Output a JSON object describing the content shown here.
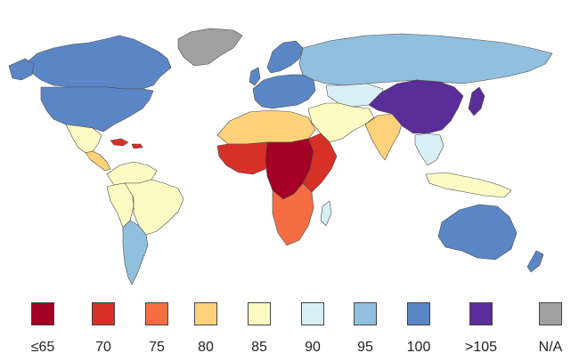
{
  "legend": {
    "items": [
      {
        "label": "≤65",
        "color": "#a50026"
      },
      {
        "label": "70",
        "color": "#d73027"
      },
      {
        "label": "75",
        "color": "#f46d43"
      },
      {
        "label": "80",
        "color": "#fdd27a"
      },
      {
        "label": "85",
        "color": "#fdfbc3"
      },
      {
        "label": "90",
        "color": "#d8eff5"
      },
      {
        "label": "95",
        "color": "#90c0dd"
      },
      {
        "label": "100",
        "color": "#5b86c6"
      },
      {
        "label": ">105",
        "color": "#5b2d99"
      },
      {
        "label": "N/A",
        "color": "#a0a0a0"
      }
    ]
  },
  "regions": [
    {
      "name": "canada",
      "class": "100"
    },
    {
      "name": "usa",
      "class": "100"
    },
    {
      "name": "greenland",
      "class": "N/A"
    },
    {
      "name": "mexico",
      "class": "85"
    },
    {
      "name": "central-america",
      "class": "80"
    },
    {
      "name": "caribbean",
      "class": "70"
    },
    {
      "name": "colombia-venezuela",
      "class": "85"
    },
    {
      "name": "brazil",
      "class": "85"
    },
    {
      "name": "andes",
      "class": "85"
    },
    {
      "name": "argentina-chile",
      "class": "95"
    },
    {
      "name": "europe-west",
      "class": "100"
    },
    {
      "name": "scandinavia",
      "class": "100"
    },
    {
      "name": "russia",
      "class": "95"
    },
    {
      "name": "central-asia",
      "class": "90"
    },
    {
      "name": "north-africa",
      "class": "80"
    },
    {
      "name": "west-africa",
      "class": "70"
    },
    {
      "name": "central-africa",
      "class": "≤65"
    },
    {
      "name": "east-africa",
      "class": "70"
    },
    {
      "name": "southern-africa",
      "class": "75"
    },
    {
      "name": "middle-east",
      "class": "85"
    },
    {
      "name": "india",
      "class": "80"
    },
    {
      "name": "china",
      "class": ">105"
    },
    {
      "name": "japan-korea",
      "class": ">105"
    },
    {
      "name": "southeast-asia",
      "class": "90"
    },
    {
      "name": "indonesia",
      "class": "85"
    },
    {
      "name": "australia",
      "class": "100"
    },
    {
      "name": "new-zealand",
      "class": "100"
    },
    {
      "name": "madagascar",
      "class": "90"
    }
  ]
}
